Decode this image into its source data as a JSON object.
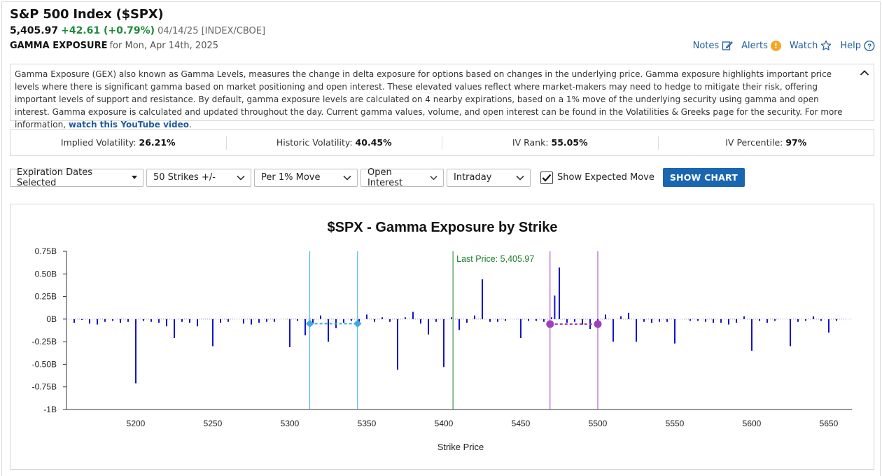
{
  "header": {
    "title": "S&P 500 Index ($SPX)",
    "price": "5,405.97",
    "change": "+42.61 (+0.79%)",
    "meta": "04/14/25 [INDEX/CBOE]",
    "sub_label": "GAMMA EXPOSURE",
    "sub_text": "for Mon, Apr 14th, 2025"
  },
  "links": {
    "notes": "Notes",
    "alerts": "Alerts",
    "alerts_badge": "!",
    "watch": "Watch",
    "help": "Help"
  },
  "description": {
    "text": "Gamma Exposure (GEX) also known as Gamma Levels, measures the change in delta exposure for options based on changes in the underlying price. Gamma exposure highlights important price levels where there is significant gamma based on market positioning and open interest. These elevated values reflect where market-makers may need to hedge to mitigate their risk, offering important levels of support and resistance. By default, gamma exposure levels are calculated on 4 nearby expirations, based on a 1% move of the underlying security using gamma and open interest. Gamma exposure is calculated and updated throughout the day. Current gamma values, volume, and open interest can be found in the Volatilities & Greeks page for the security. For more information,",
    "link": "watch this YouTube video",
    "end": "."
  },
  "volatility": {
    "iv_label": "Implied Volatility:",
    "iv": "26.21%",
    "hv_label": "Historic Volatility:",
    "hv": "40.45%",
    "ivr_label": "IV Rank:",
    "ivr": "55.05%",
    "ivp_label": "IV Percentile:",
    "ivp": "97%"
  },
  "controls": {
    "expiration": "Expiration Dates Selected",
    "strikes": "50 Strikes +/-",
    "move": "Per 1% Move",
    "metric": "Open Interest",
    "period": "Intraday",
    "show_expected_label": "Show Expected Move",
    "show_expected_checked": true,
    "show_chart": "SHOW CHART"
  },
  "colors": {
    "bar": "#1515c8",
    "last_price": "#1e7a2a",
    "expected_move_1": "#3aa8ea",
    "expected_move_2": "#a040c0",
    "accent": "#1a66b0"
  },
  "chart_data": {
    "type": "bar",
    "title": "$SPX - Gamma Exposure by Strike",
    "xlabel": "Strike Price",
    "ylabel": "",
    "xlim": [
      5155,
      5665
    ],
    "ylim": [
      -1.0,
      0.75
    ],
    "x_ticks": [
      5200,
      5250,
      5300,
      5350,
      5400,
      5450,
      5500,
      5550,
      5600,
      5650
    ],
    "y_ticks": [
      {
        "v": 0.75,
        "label": "0.75B"
      },
      {
        "v": 0.5,
        "label": "0.50B"
      },
      {
        "v": 0.25,
        "label": "0.25B"
      },
      {
        "v": 0,
        "label": "0B"
      },
      {
        "v": -0.25,
        "label": "-0.25B"
      },
      {
        "v": -0.5,
        "label": "-0.50B"
      },
      {
        "v": -0.75,
        "label": "-0.75B"
      },
      {
        "v": -1.0,
        "label": "-1B"
      }
    ],
    "last_price": 5405.97,
    "last_price_label": "Last Price: 5,405.97",
    "expected_moves": [
      {
        "low": 5313,
        "high": 5344,
        "color": "#3aa8ea",
        "y": -0.05
      },
      {
        "low": 5469,
        "high": 5500,
        "color": "#a040c0",
        "y": -0.055
      }
    ],
    "series": [
      {
        "x": [
          5160,
          5165,
          5170,
          5175,
          5180,
          5185,
          5190,
          5195,
          5200,
          5205,
          5210,
          5215,
          5220,
          5225,
          5230,
          5235,
          5240,
          5250,
          5255,
          5260,
          5270,
          5275,
          5280,
          5285,
          5290,
          5300,
          5305,
          5310,
          5315,
          5320,
          5325,
          5330,
          5335,
          5340,
          5345,
          5350,
          5355,
          5360,
          5365,
          5370,
          5375,
          5380,
          5385,
          5390,
          5395,
          5400,
          5405,
          5410,
          5415,
          5420,
          5425,
          5430,
          5435,
          5440,
          5450,
          5455,
          5460,
          5465,
          5470,
          5472,
          5475,
          5480,
          5485,
          5490,
          5495,
          5500,
          5505,
          5510,
          5515,
          5520,
          5525,
          5530,
          5535,
          5540,
          5545,
          5550,
          5560,
          5565,
          5570,
          5575,
          5580,
          5585,
          5590,
          5595,
          5600,
          5605,
          5610,
          5615,
          5625,
          5630,
          5635,
          5640,
          5645,
          5650,
          5655
        ],
        "values": [
          -0.04,
          -0.01,
          -0.05,
          -0.06,
          -0.03,
          -0.02,
          -0.04,
          -0.03,
          -0.71,
          -0.02,
          -0.03,
          -0.04,
          -0.08,
          -0.21,
          -0.03,
          -0.04,
          -0.08,
          -0.3,
          -0.04,
          -0.03,
          -0.05,
          -0.06,
          -0.04,
          -0.03,
          -0.03,
          -0.31,
          -0.02,
          -0.18,
          -0.05,
          0.04,
          -0.25,
          -0.1,
          -0.04,
          -0.02,
          -0.04,
          0.05,
          -0.03,
          0.02,
          -0.03,
          -0.56,
          0.02,
          0.08,
          -0.05,
          -0.17,
          -0.03,
          -0.53,
          0.02,
          -0.12,
          -0.04,
          0.04,
          0.44,
          -0.03,
          -0.03,
          -0.02,
          -0.21,
          -0.02,
          -0.02,
          -0.03,
          0.02,
          0.26,
          0.57,
          -0.04,
          -0.03,
          -0.06,
          -0.11,
          -0.06,
          0.05,
          -0.25,
          0.03,
          0.07,
          -0.25,
          -0.03,
          -0.04,
          -0.03,
          -0.03,
          -0.27,
          -0.02,
          -0.02,
          -0.03,
          -0.04,
          -0.04,
          -0.06,
          -0.04,
          0.03,
          -0.35,
          -0.02,
          -0.04,
          -0.02,
          -0.3,
          -0.03,
          -0.02,
          0.03,
          -0.02,
          -0.15,
          -0.02
        ]
      }
    ]
  }
}
